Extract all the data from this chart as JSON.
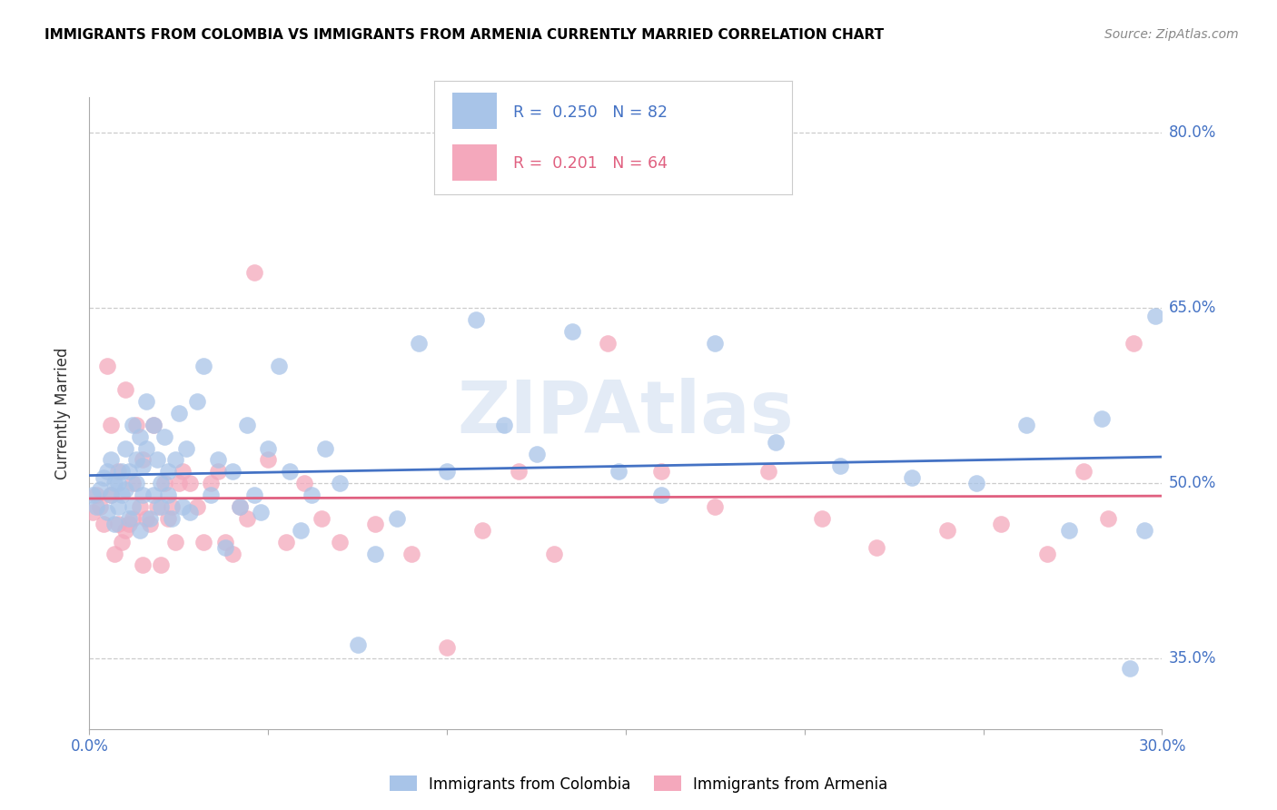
{
  "title": "IMMIGRANTS FROM COLOMBIA VS IMMIGRANTS FROM ARMENIA CURRENTLY MARRIED CORRELATION CHART",
  "source": "Source: ZipAtlas.com",
  "ylabel": "Currently Married",
  "watermark": "ZIPAtlas",
  "xlim": [
    0.0,
    0.3
  ],
  "ylim": [
    0.29,
    0.83
  ],
  "yticks": [
    0.35,
    0.5,
    0.65,
    0.8
  ],
  "xticks": [
    0.0,
    0.05,
    0.1,
    0.15,
    0.2,
    0.25,
    0.3
  ],
  "xtick_labels": [
    "0.0%",
    "",
    "",
    "",
    "",
    "",
    "30.0%"
  ],
  "ytick_labels_right": [
    "35.0%",
    "50.0%",
    "65.0%",
    "80.0%"
  ],
  "colombia_color": "#a8c4e8",
  "armenia_color": "#f4a8bc",
  "colombia_line_color": "#4472c4",
  "armenia_line_color": "#e06080",
  "colombia_R": 0.25,
  "colombia_N": 82,
  "armenia_R": 0.201,
  "armenia_N": 64,
  "colombia_x": [
    0.001,
    0.002,
    0.003,
    0.004,
    0.005,
    0.005,
    0.006,
    0.006,
    0.007,
    0.007,
    0.008,
    0.008,
    0.009,
    0.009,
    0.01,
    0.01,
    0.011,
    0.011,
    0.012,
    0.012,
    0.013,
    0.013,
    0.014,
    0.014,
    0.015,
    0.015,
    0.016,
    0.016,
    0.017,
    0.018,
    0.018,
    0.019,
    0.02,
    0.02,
    0.021,
    0.022,
    0.022,
    0.023,
    0.024,
    0.025,
    0.026,
    0.027,
    0.028,
    0.03,
    0.032,
    0.034,
    0.036,
    0.038,
    0.04,
    0.042,
    0.044,
    0.046,
    0.048,
    0.05,
    0.053,
    0.056,
    0.059,
    0.062,
    0.066,
    0.07,
    0.075,
    0.08,
    0.086,
    0.092,
    0.1,
    0.108,
    0.116,
    0.125,
    0.135,
    0.148,
    0.16,
    0.175,
    0.192,
    0.21,
    0.23,
    0.248,
    0.262,
    0.274,
    0.283,
    0.291,
    0.295,
    0.298
  ],
  "colombia_y": [
    0.49,
    0.48,
    0.495,
    0.505,
    0.51,
    0.475,
    0.52,
    0.49,
    0.5,
    0.465,
    0.48,
    0.5,
    0.51,
    0.49,
    0.495,
    0.53,
    0.47,
    0.51,
    0.55,
    0.48,
    0.5,
    0.52,
    0.46,
    0.54,
    0.49,
    0.515,
    0.57,
    0.53,
    0.47,
    0.49,
    0.55,
    0.52,
    0.48,
    0.5,
    0.54,
    0.51,
    0.49,
    0.47,
    0.52,
    0.56,
    0.48,
    0.53,
    0.475,
    0.57,
    0.6,
    0.49,
    0.52,
    0.445,
    0.51,
    0.48,
    0.55,
    0.49,
    0.475,
    0.53,
    0.6,
    0.51,
    0.46,
    0.49,
    0.53,
    0.5,
    0.362,
    0.44,
    0.47,
    0.62,
    0.51,
    0.64,
    0.55,
    0.525,
    0.63,
    0.51,
    0.49,
    0.62,
    0.535,
    0.515,
    0.505,
    0.5,
    0.55,
    0.46,
    0.555,
    0.342,
    0.46,
    0.643
  ],
  "armenia_x": [
    0.001,
    0.002,
    0.003,
    0.004,
    0.005,
    0.006,
    0.006,
    0.007,
    0.008,
    0.008,
    0.009,
    0.01,
    0.01,
    0.011,
    0.012,
    0.012,
    0.013,
    0.014,
    0.015,
    0.015,
    0.016,
    0.017,
    0.018,
    0.019,
    0.02,
    0.021,
    0.022,
    0.023,
    0.024,
    0.025,
    0.026,
    0.028,
    0.03,
    0.032,
    0.034,
    0.036,
    0.038,
    0.04,
    0.042,
    0.044,
    0.046,
    0.05,
    0.055,
    0.06,
    0.065,
    0.07,
    0.08,
    0.09,
    0.1,
    0.11,
    0.12,
    0.13,
    0.145,
    0.16,
    0.175,
    0.19,
    0.205,
    0.22,
    0.24,
    0.255,
    0.268,
    0.278,
    0.285,
    0.292
  ],
  "armenia_y": [
    0.475,
    0.49,
    0.48,
    0.465,
    0.6,
    0.55,
    0.49,
    0.44,
    0.465,
    0.51,
    0.45,
    0.58,
    0.46,
    0.465,
    0.47,
    0.5,
    0.55,
    0.48,
    0.43,
    0.52,
    0.47,
    0.465,
    0.55,
    0.48,
    0.43,
    0.5,
    0.47,
    0.48,
    0.45,
    0.5,
    0.51,
    0.5,
    0.48,
    0.45,
    0.5,
    0.51,
    0.45,
    0.44,
    0.48,
    0.47,
    0.68,
    0.52,
    0.45,
    0.5,
    0.47,
    0.45,
    0.465,
    0.44,
    0.36,
    0.46,
    0.51,
    0.44,
    0.62,
    0.51,
    0.48,
    0.51,
    0.47,
    0.445,
    0.46,
    0.465,
    0.44,
    0.51,
    0.47,
    0.62
  ]
}
